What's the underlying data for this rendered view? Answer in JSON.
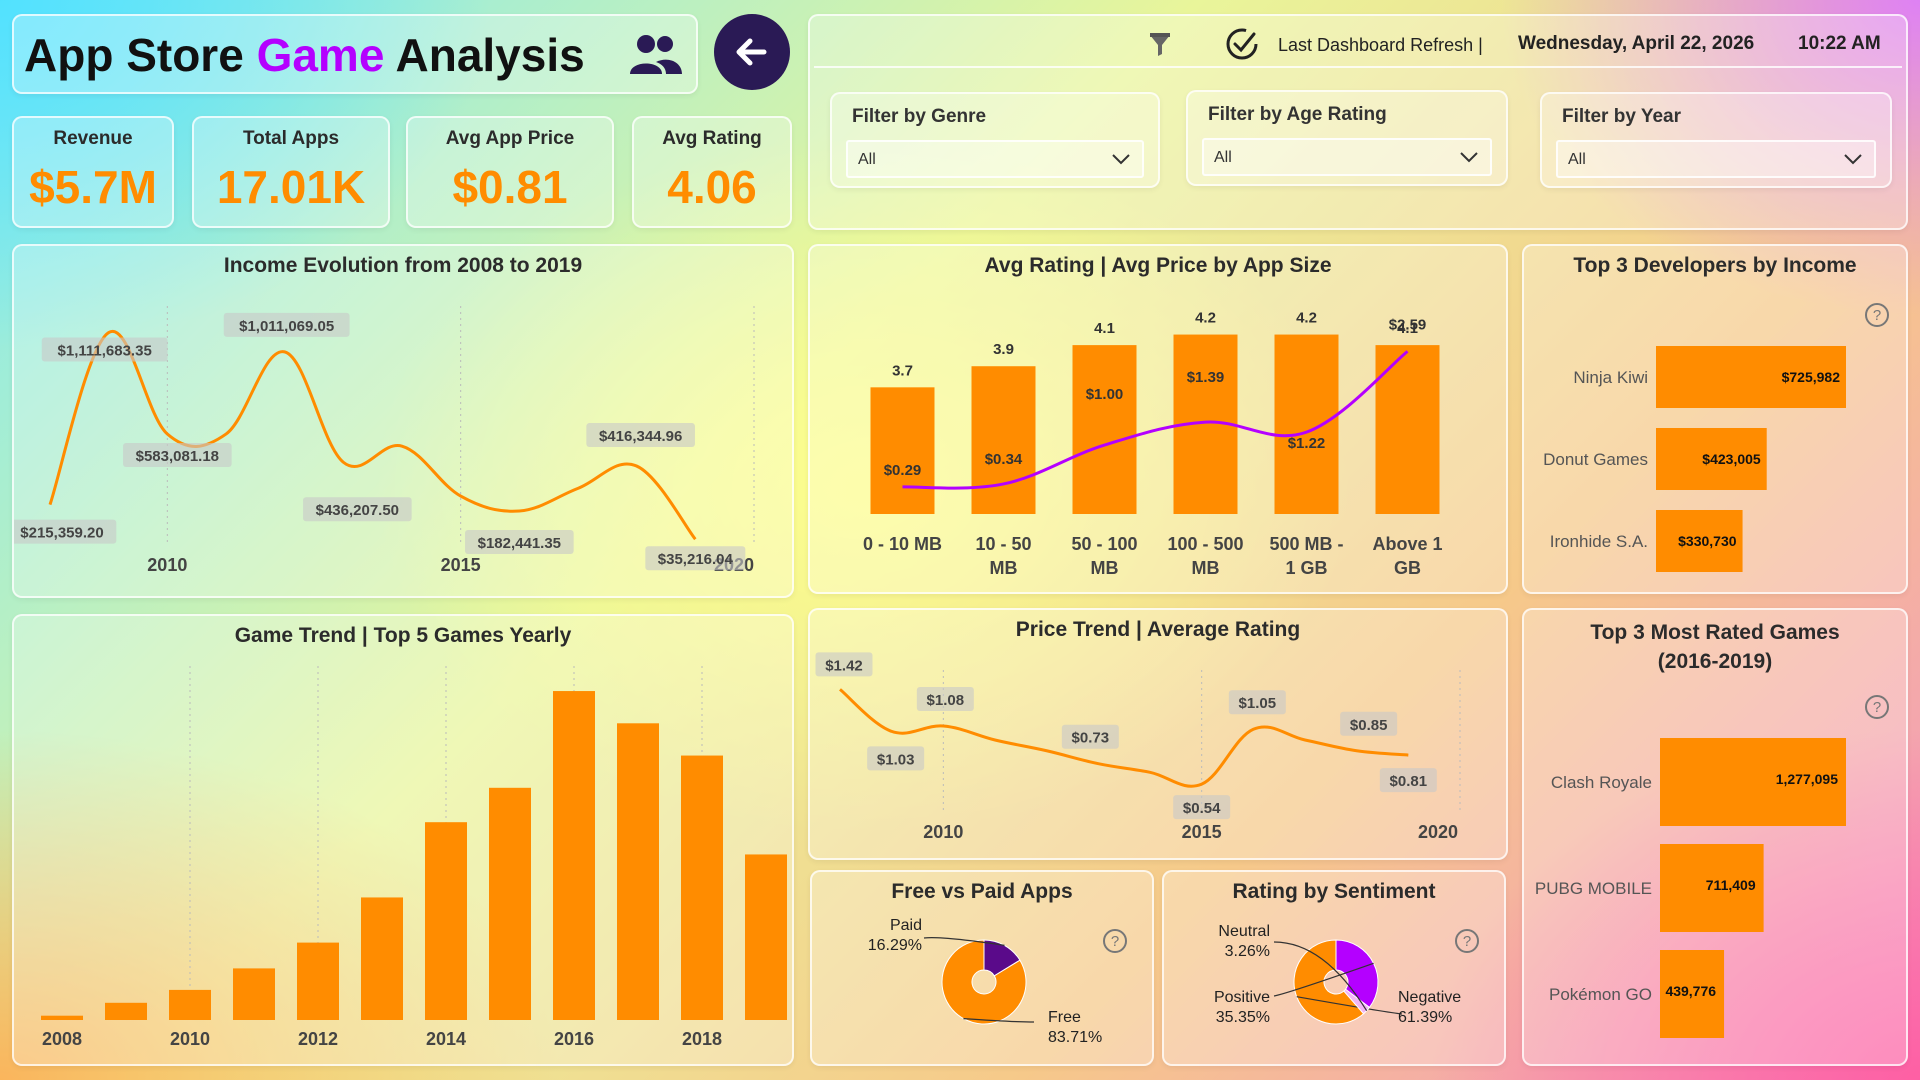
{
  "header": {
    "title_part1": "App Store ",
    "title_highlight": "Game",
    "title_part2": " Analysis",
    "accent_color": "#b400ff",
    "icons": [
      "users-icon",
      "back-arrow-icon"
    ]
  },
  "kpis": [
    {
      "label": "Revenue",
      "value": "$5.7M"
    },
    {
      "label": "Total Apps",
      "value": "17.01K"
    },
    {
      "label": "Avg App Price",
      "value": "$0.81"
    },
    {
      "label": "Avg Rating",
      "value": "4.06"
    }
  ],
  "refresh": {
    "label": "Last Dashboard Refresh |",
    "date": "Wednesday, April 22, 2026",
    "time": "10:22 AM"
  },
  "filters": [
    {
      "label": "Filter by Genre",
      "value": "All"
    },
    {
      "label": "Filter by Age Rating",
      "value": "All"
    },
    {
      "label": "Filter by Year",
      "value": "All"
    }
  ],
  "colors": {
    "orange": "#ff8c00",
    "purple": "#b400ff",
    "dark_purple": "#5a0a8a",
    "navy": "#2a1a55"
  },
  "chart_data": [
    {
      "id": "income",
      "type": "line",
      "title": "Income Evolution from 2008 to 2019",
      "x": [
        2008,
        2009,
        2010,
        2011,
        2012,
        2013,
        2014,
        2015,
        2016,
        2017,
        2018,
        2019
      ],
      "values": [
        215359.2,
        1111683.35,
        583081.18,
        583081.18,
        1011069.05,
        436207.5,
        520000,
        260000,
        182441.35,
        300000,
        416344.96,
        35216.04
      ],
      "data_labels": [
        {
          "x": 2008,
          "text": "$215,359.20"
        },
        {
          "x": 2009,
          "text": "$1,111,683.35"
        },
        {
          "x": 2010,
          "text": "$583,081.18"
        },
        {
          "x": 2012,
          "text": "$1,011,069.05"
        },
        {
          "x": 2013,
          "text": "$436,207.50"
        },
        {
          "x": 2016,
          "text": "$182,441.35"
        },
        {
          "x": 2018,
          "text": "$416,344.96"
        },
        {
          "x": 2019,
          "text": "$35,216.04"
        }
      ],
      "xticks": [
        "2010",
        "2015",
        "2020"
      ],
      "xlim": [
        2008,
        2020
      ],
      "ylim": [
        0,
        1250000
      ]
    },
    {
      "id": "app_size",
      "type": "bar",
      "title": "Avg Rating | Avg Price by App Size",
      "categories": [
        "0 - 10 MB",
        "10 - 50 MB",
        "50 - 100 MB",
        "100 - 500 MB",
        "500 MB - 1 GB",
        "Above 1 GB"
      ],
      "series": [
        {
          "name": "Avg Rating",
          "type": "bar",
          "values": [
            3.7,
            3.9,
            4.1,
            4.2,
            4.2,
            4.1
          ],
          "labels": [
            "3.7",
            "3.9",
            "4.1",
            "4.2",
            "4.2",
            "4.1"
          ]
        },
        {
          "name": "Avg Price",
          "type": "line",
          "values": [
            0.29,
            0.34,
            1.0,
            1.39,
            1.22,
            2.59
          ],
          "labels": [
            "$0.29",
            "$0.34",
            "$1.00",
            "$1.39",
            "$1.22",
            "$2.59"
          ]
        }
      ],
      "ylim_bar": [
        0,
        4.5
      ]
    },
    {
      "id": "top_devs",
      "type": "bar",
      "orientation": "horizontal",
      "title": "Top 3 Developers by Income",
      "categories": [
        "Ninja Kiwi",
        "Donut Games",
        "Ironhide S.A."
      ],
      "values": [
        725982,
        423005,
        330730
      ],
      "labels": [
        "$725,982",
        "$423,005",
        "$330,730"
      ]
    },
    {
      "id": "game_trend",
      "type": "bar",
      "title": "Game Trend | Top 5 Games Yearly",
      "categories": [
        "2008",
        "2009",
        "2010",
        "2011",
        "2012",
        "2013",
        "2014",
        "2015",
        "2016",
        "2017",
        "2018",
        "2019"
      ],
      "values": [
        2,
        8,
        14,
        24,
        36,
        57,
        92,
        108,
        153,
        138,
        123,
        77
      ],
      "xticks": [
        "2008",
        "2010",
        "2012",
        "2014",
        "2016",
        "2018"
      ],
      "ylim": [
        0,
        160
      ]
    },
    {
      "id": "price_trend",
      "type": "line",
      "title": "Price Trend | Average Rating",
      "x": [
        2008,
        2009,
        2010,
        2011,
        2012,
        2013,
        2014,
        2015,
        2016,
        2017,
        2018,
        2019
      ],
      "values": [
        1.42,
        1.03,
        1.08,
        0.95,
        0.85,
        0.73,
        0.65,
        0.54,
        1.05,
        0.95,
        0.85,
        0.81
      ],
      "data_labels": [
        {
          "x": 2008,
          "text": "$1.42"
        },
        {
          "x": 2009,
          "text": "$1.03"
        },
        {
          "x": 2010,
          "text": "$1.08"
        },
        {
          "x": 2013,
          "text": "$0.73"
        },
        {
          "x": 2015,
          "text": "$0.54"
        },
        {
          "x": 2016,
          "text": "$1.05"
        },
        {
          "x": 2018,
          "text": "$0.85"
        },
        {
          "x": 2019,
          "text": "$0.81"
        }
      ],
      "xticks": [
        "2010",
        "2015",
        "2020"
      ],
      "xlim": [
        2008,
        2020
      ],
      "ylim": [
        0,
        1.6
      ]
    },
    {
      "id": "free_paid",
      "type": "pie",
      "title": "Free vs Paid Apps",
      "slices": [
        {
          "name": "Free",
          "value": 83.71,
          "label": "83.71%",
          "color": "#ff8c00"
        },
        {
          "name": "Paid",
          "value": 16.29,
          "label": "16.29%",
          "color": "#5a0a8a"
        }
      ]
    },
    {
      "id": "sentiment",
      "type": "pie",
      "title": "Rating by Sentiment",
      "slices": [
        {
          "name": "Negative",
          "value": 61.39,
          "label": "61.39%",
          "color": "#ff8c00"
        },
        {
          "name": "Positive",
          "value": 35.35,
          "label": "35.35%",
          "color": "#b400ff"
        },
        {
          "name": "Neutral",
          "value": 3.26,
          "label": "3.26%",
          "color": "#f2b6f5"
        }
      ]
    },
    {
      "id": "top_rated",
      "type": "bar",
      "orientation": "horizontal",
      "title": "Top 3 Most Rated Games (2016-2019)",
      "title_line1": "Top 3 Most Rated Games",
      "title_line2": "(2016-2019)",
      "categories": [
        "Clash Royale",
        "PUBG MOBILE",
        "Pokémon GO"
      ],
      "values": [
        1277095,
        711409,
        439776
      ],
      "labels": [
        "1,277,095",
        "711,409",
        "439,776"
      ]
    }
  ]
}
